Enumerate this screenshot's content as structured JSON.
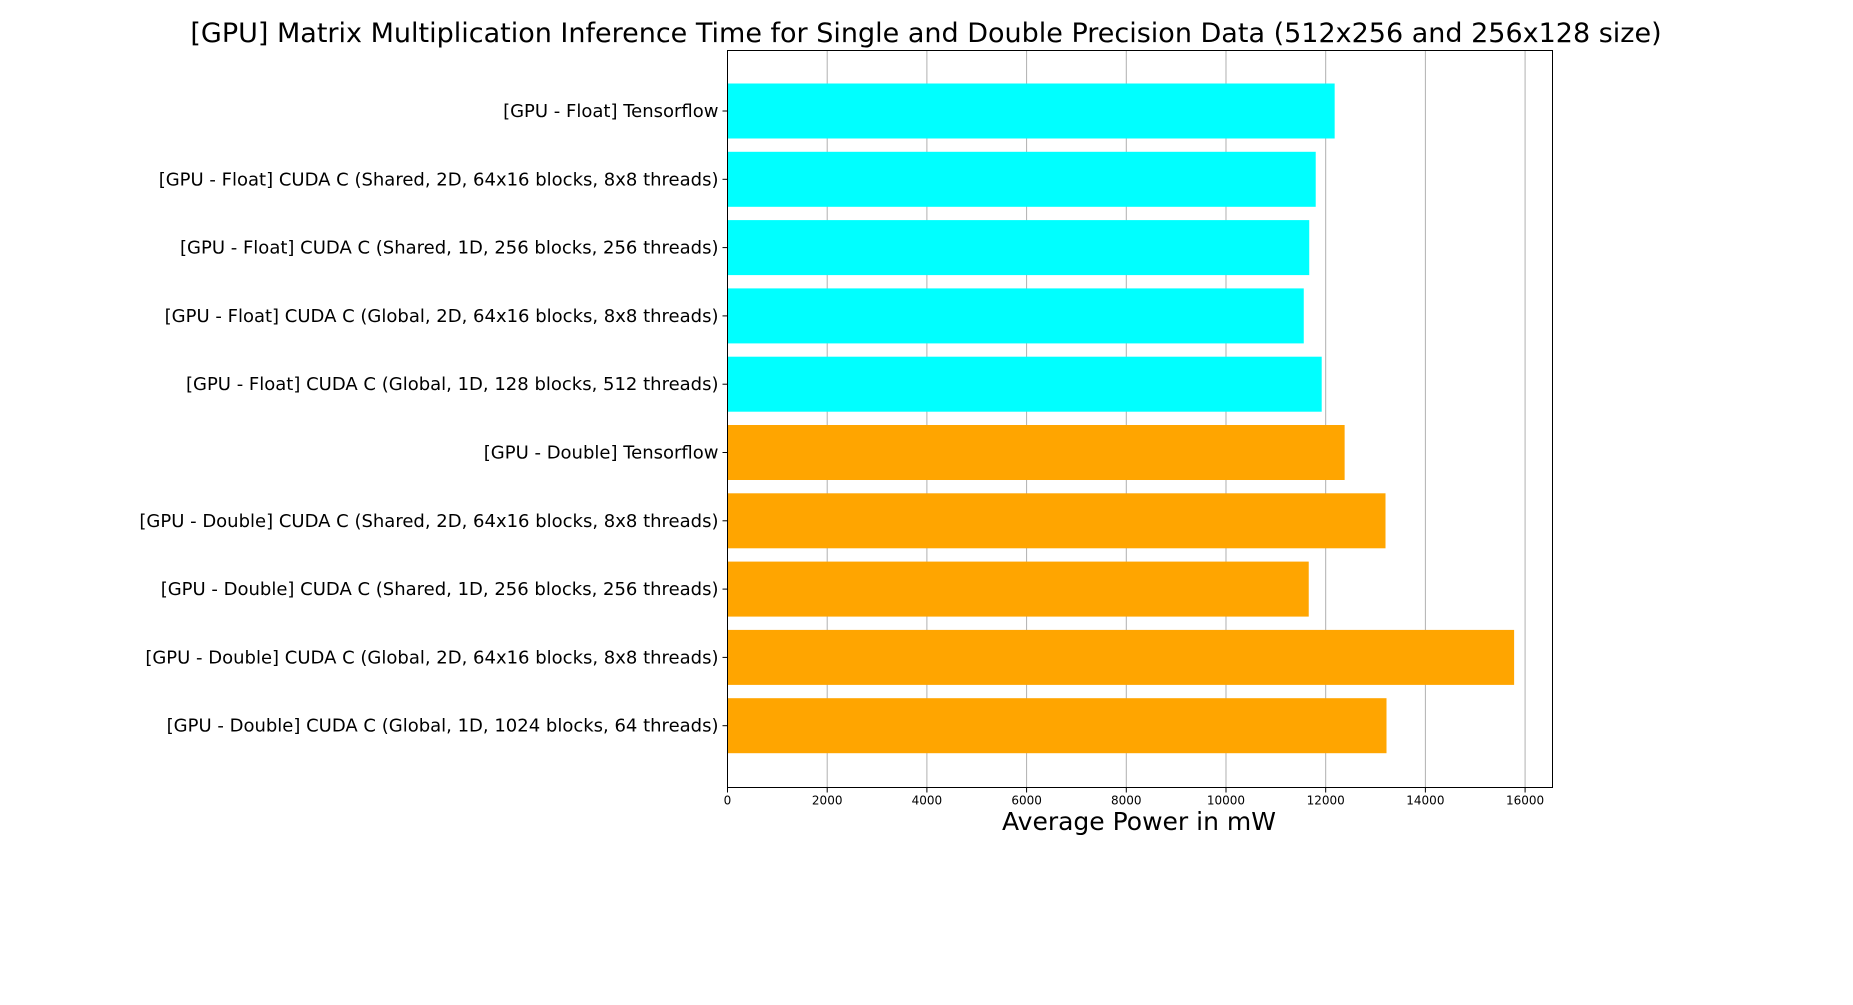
{
  "chart_data": {
    "type": "bar",
    "orientation": "horizontal",
    "title": "[GPU] Matrix Multiplication Inference Time for Single and Double Precision Data (512x256 and 256x128 size)",
    "xlabel": "Average Power in mW",
    "ylabel": "",
    "xlim": [
      0,
      16550
    ],
    "xticks": [
      0,
      2000,
      4000,
      6000,
      8000,
      10000,
      12000,
      14000,
      16000
    ],
    "grid": "vertical",
    "legend": "none",
    "categories": [
      "[GPU - Float] Tensorflow",
      "[GPU - Float] CUDA C (Shared, 2D, 64x16 blocks, 8x8 threads)",
      "[GPU - Float] CUDA C (Shared, 1D, 256 blocks, 256 threads)",
      "[GPU - Float] CUDA C (Global, 2D, 64x16 blocks, 8x8 threads)",
      "[GPU - Float] CUDA C (Global, 1D, 128 blocks, 512 threads)",
      "[GPU - Double] Tensorflow",
      "[GPU - Double] CUDA C (Shared, 2D, 64x16 blocks, 8x8 threads)",
      "[GPU - Double] CUDA C (Shared, 1D, 256 blocks, 256 threads)",
      "[GPU - Double] CUDA C (Global, 2D, 64x16 blocks, 8x8 threads)",
      "[GPU - Double] CUDA C (Global, 1D, 1024 blocks, 64 threads)"
    ],
    "values": [
      12180,
      11800,
      11670,
      11560,
      11920,
      12380,
      13200,
      11660,
      15780,
      13220
    ],
    "bar_colors": [
      "#00FFFF",
      "#00FFFF",
      "#00FFFF",
      "#00FFFF",
      "#00FFFF",
      "#FFA500",
      "#FFA500",
      "#FFA500",
      "#FFA500",
      "#FFA500"
    ]
  }
}
